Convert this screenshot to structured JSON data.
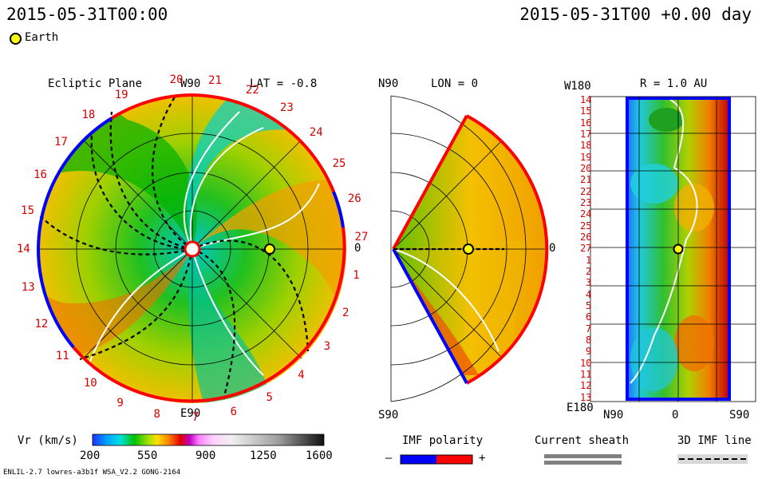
{
  "header": {
    "left_timestamp": "2015-05-31T00:00",
    "right_timestamp": "2015-05-31T00 +0.00 day"
  },
  "legend": {
    "earth_label": "Earth"
  },
  "panels": {
    "ecliptic": {
      "title": "Ecliptic Plane",
      "top_label": "W90",
      "bottom_label": "E90",
      "right_label": "0",
      "lat_text": "LAT = -0.8",
      "rot_labels": [
        "20",
        "21",
        "22",
        "23",
        "24",
        "25",
        "26",
        "27",
        "1",
        "2",
        "3",
        "4",
        "5",
        "6",
        "7",
        "8",
        "9",
        "10",
        "11",
        "12",
        "13",
        "14",
        "15",
        "16",
        "17",
        "18",
        "19"
      ]
    },
    "meridional": {
      "top_label": "N90",
      "bottom_label": "S90",
      "lon_text": "LON = 0",
      "right_label": "0"
    },
    "synoptic": {
      "title": "R = 1.0 AU",
      "top_left": "W180",
      "bottom_left": "E180",
      "x_left": "N90",
      "x_mid": "0",
      "x_right": "S90",
      "row_labels": [
        "14",
        "15",
        "16",
        "17",
        "18",
        "19",
        "20",
        "21",
        "22",
        "23",
        "24",
        "25",
        "26",
        "27",
        "1",
        "2",
        "3",
        "4",
        "5",
        "6",
        "7",
        "8",
        "9",
        "10",
        "11",
        "12",
        "13"
      ]
    }
  },
  "colorbar": {
    "label": "Vr (km/s)",
    "ticks": [
      "200",
      "550",
      "900",
      "1250",
      "1600"
    ],
    "min": 200,
    "max": 1600
  },
  "imf": {
    "title": "IMF polarity",
    "minus": "–",
    "plus": "+",
    "neg_color": "#0000ff",
    "pos_color": "#ff0000"
  },
  "sheath": {
    "title": "Current sheath"
  },
  "imf_line": {
    "title": "3D IMF line"
  },
  "footer": {
    "model_text": "ENLIL-2.7 lowres-a3b1f WSA_V2.2 GONG-2164"
  },
  "colors": {
    "slow_wind": "#00a800",
    "mid_wind": "#f8d000",
    "fast_wind": "#e83000",
    "boundary_neg": "#0000ff",
    "boundary_pos": "#ff0000",
    "earth": "#ffff00"
  }
}
